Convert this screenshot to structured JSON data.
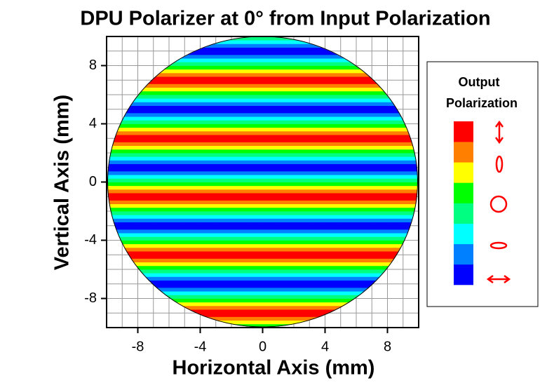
{
  "chart_data": {
    "type": "contour",
    "title": "DPU Polarizer at 0° from Input Polarization",
    "x_label": "Horizontal Axis (mm)",
    "y_label": "Vertical Axis (mm)",
    "legend_title": [
      "Output",
      "Polarization"
    ],
    "colors": [
      "#0000ff",
      "#0080ff",
      "#00ffff",
      "#00ff80",
      "#00ff00",
      "#ffff00",
      "#ff8000",
      "#ff0000"
    ],
    "xlim": [
      -10,
      10
    ],
    "ylim": [
      -10,
      10
    ],
    "xticks": [
      -8,
      -4,
      0,
      4,
      8
    ],
    "yticks": [
      -8,
      -4,
      0,
      4,
      8
    ],
    "xgrid": [
      -9,
      -8,
      -7,
      -6,
      -5,
      -4,
      -3,
      -2,
      -1,
      0,
      1,
      2,
      3,
      4,
      5,
      6,
      7,
      8,
      9
    ],
    "ygrid": [
      -9,
      -8,
      -7,
      -6,
      -5,
      -4,
      -3,
      -2,
      -1,
      0,
      1,
      2,
      3,
      4,
      5,
      6,
      7,
      8,
      9
    ],
    "grid": true,
    "y_bins": [
      -10,
      -9.75,
      -9.5,
      -9.25,
      -9,
      -8.75,
      -8.5,
      -8.25,
      -8,
      -7.75,
      -7.5,
      -7.25,
      -7,
      -6.75,
      -6.5,
      -6.25,
      -6,
      -5.75,
      -5.5,
      -5.25,
      -5,
      -4.75,
      -4.5,
      -4.25,
      -4,
      -3.75,
      -3.5,
      -3.25,
      -3,
      -2.75,
      -2.5,
      -2.25,
      -2,
      -1.75,
      -1.5,
      -1.25,
      -1,
      -0.75,
      -0.5,
      -0.25,
      0,
      0.25,
      0.5,
      0.75,
      1,
      1.25,
      1.5,
      1.75,
      2,
      2.25,
      2.5,
      2.75,
      3,
      3.25,
      3.5,
      3.75,
      4,
      4.25,
      4.5,
      4.75,
      5,
      5.25,
      5.5,
      5.75,
      6,
      6.25,
      6.5,
      6.75,
      7,
      7.25,
      7.5,
      7.75,
      8,
      8.25,
      8.5,
      8.75,
      9,
      9.25,
      9.5,
      9.75,
      10
    ],
    "values": [
      4,
      5,
      6,
      7,
      7,
      6,
      5,
      4,
      3,
      2,
      1,
      0,
      0,
      1,
      2,
      3,
      4,
      5,
      6,
      7,
      7,
      6,
      5,
      4,
      3,
      2,
      1,
      0,
      0,
      1,
      2,
      3,
      4,
      5,
      6,
      7,
      7,
      6,
      5,
      4,
      3,
      2,
      1,
      0,
      0,
      1,
      2,
      3,
      4,
      5,
      6,
      7,
      7,
      6,
      5,
      4,
      3,
      2,
      1,
      0,
      0,
      1,
      2,
      3,
      4,
      5,
      6,
      7,
      7,
      6,
      5,
      4,
      3,
      2,
      1,
      0,
      0,
      1,
      2,
      3
    ]
  }
}
